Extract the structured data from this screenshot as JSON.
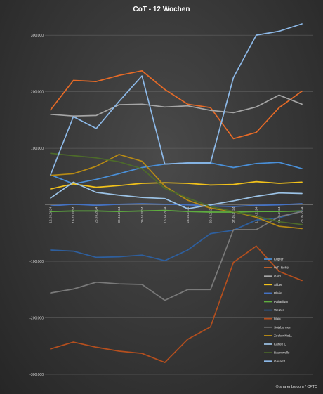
{
  "chart_data": {
    "type": "line",
    "title": "CoT - 12 Wochen",
    "source": "© shareribs.com / CFTC",
    "x": [
      "12.03.2024",
      "19.03.2024",
      "26.03.2024",
      "02.04.2024",
      "09.04.2024",
      "16.04.2024",
      "23.04.2024",
      "30.04.2024",
      "07.05.2024",
      "14.05.2024",
      "21.05.2024",
      "28.05.2024"
    ],
    "ylim": [
      -300000,
      330000
    ],
    "yticks": [
      -300000,
      -200000,
      -100000,
      0,
      100000,
      200000,
      300000
    ],
    "ytick_labels": [
      "-300.000",
      "-200.000",
      "-100.000",
      "",
      "100.000",
      "200.000",
      "300.000"
    ],
    "grid": true,
    "legend_position": "bottom-right",
    "series": [
      {
        "name": "Kupfer",
        "color": "#4a90d9",
        "values": [
          53000,
          37000,
          45000,
          55000,
          66000,
          72000,
          74000,
          74000,
          66000,
          73000,
          75000,
          64000
        ]
      },
      {
        "name": "WTI Rohöl",
        "color": "#e86b27",
        "values": [
          168000,
          220000,
          218000,
          229000,
          237000,
          204000,
          178000,
          172000,
          117000,
          128000,
          172000,
          201000
        ]
      },
      {
        "name": "Gold",
        "color": "#a6a6a6",
        "values": [
          160000,
          157000,
          158000,
          177000,
          178000,
          173000,
          175000,
          167000,
          163000,
          173000,
          194000,
          178000
        ]
      },
      {
        "name": "Silber",
        "color": "#f2c21b",
        "values": [
          28000,
          37000,
          31000,
          34000,
          38000,
          39000,
          38000,
          35000,
          36000,
          41000,
          38000,
          40000
        ]
      },
      {
        "name": "Platin",
        "color": "#4472c4",
        "values": [
          -2000,
          1000,
          -1000,
          1000,
          2000,
          1000,
          0,
          -2000,
          -3000,
          -1000,
          0,
          2000
        ]
      },
      {
        "name": "Palladium",
        "color": "#5fae3f",
        "values": [
          -12000,
          -11000,
          -11000,
          -12000,
          -11000,
          -10000,
          -12000,
          -13000,
          -13000,
          -12000,
          -12000,
          -11000
        ]
      },
      {
        "name": "Weizen",
        "color": "#2e5f9e",
        "values": [
          -80000,
          -82000,
          -93000,
          -92000,
          -89000,
          -99000,
          -80000,
          -51000,
          -45000,
          -27000,
          -23000,
          -11000
        ]
      },
      {
        "name": "Mais",
        "color": "#b54f1e",
        "values": [
          -255000,
          -243000,
          -252000,
          -259000,
          -263000,
          -279000,
          -238000,
          -216000,
          -102000,
          -73000,
          -118000,
          -134000
        ]
      },
      {
        "name": "Sojabohnen",
        "color": "#7a7a7a",
        "values": [
          -156000,
          -149000,
          -137000,
          -140000,
          -141000,
          -169000,
          -150000,
          -150000,
          -44000,
          -44000,
          -21000,
          -12000
        ]
      },
      {
        "name": "Zucker No11",
        "color": "#b88b14",
        "values": [
          52000,
          55000,
          68000,
          89000,
          77000,
          33000,
          8000,
          -6000,
          -12000,
          -22000,
          -38000,
          -42000
        ]
      },
      {
        "name": "Kaffee C",
        "color": "#9cc3e6",
        "values": [
          12000,
          40000,
          22000,
          17000,
          13000,
          11000,
          -7000,
          0,
          7000,
          15000,
          21000,
          20000
        ]
      },
      {
        "name": "Baumwolle",
        "color": "#4d6b2a",
        "values": [
          91000,
          87000,
          83000,
          76000,
          64000,
          29000,
          12000,
          -3000,
          -12000,
          -20000,
          -30000,
          -35000
        ]
      },
      {
        "name": "Gesamt",
        "color": "#8db9e8",
        "values": [
          53000,
          156000,
          135000,
          183000,
          228000,
          72000,
          74000,
          74000,
          225000,
          300000,
          307000,
          320000
        ]
      }
    ]
  }
}
